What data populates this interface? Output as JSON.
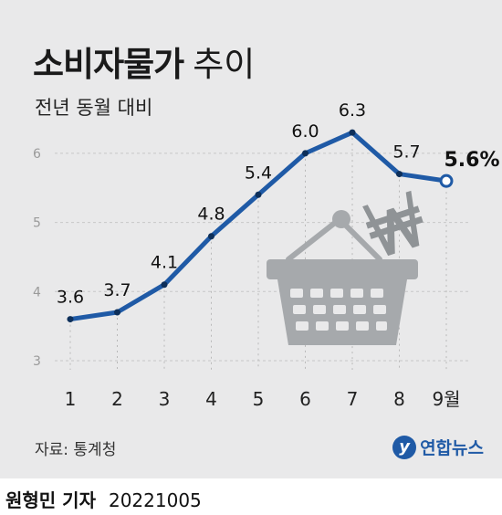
{
  "header": {
    "title_bold": "소비자물가",
    "title_light": "추이",
    "subtitle": "전년 동월 대비"
  },
  "source": "자료: 통계청",
  "logo": {
    "mark": "y",
    "word": "연합뉴스"
  },
  "footer": {
    "reporter": "원형민 기자",
    "date": "20221005"
  },
  "colors": {
    "line": "#1f5aa6",
    "panel": "#e9e9ea",
    "basket": "#a6a9ac",
    "won": "#8f9396"
  },
  "icons": [
    "shopping-basket-icon",
    "won-sign-icon",
    "yonhap-logo-icon"
  ],
  "chart_data": {
    "type": "line",
    "categories": [
      "1",
      "2",
      "3",
      "4",
      "5",
      "6",
      "7",
      "8",
      "9월"
    ],
    "values": [
      3.6,
      3.7,
      4.1,
      4.8,
      5.4,
      6.0,
      6.3,
      5.7,
      5.6
    ],
    "data_labels": [
      "3.6",
      "3.7",
      "4.1",
      "4.8",
      "5.4",
      "6.0",
      "6.3",
      "5.7",
      "5.6%"
    ],
    "ylim": [
      3,
      6.5
    ],
    "yticks": [
      3,
      4,
      5,
      6
    ],
    "ytick_labels": [
      "3",
      "4",
      "5",
      "6"
    ],
    "grid": true,
    "title": "소비자물가 추이",
    "subtitle": "전년 동월 대비"
  }
}
